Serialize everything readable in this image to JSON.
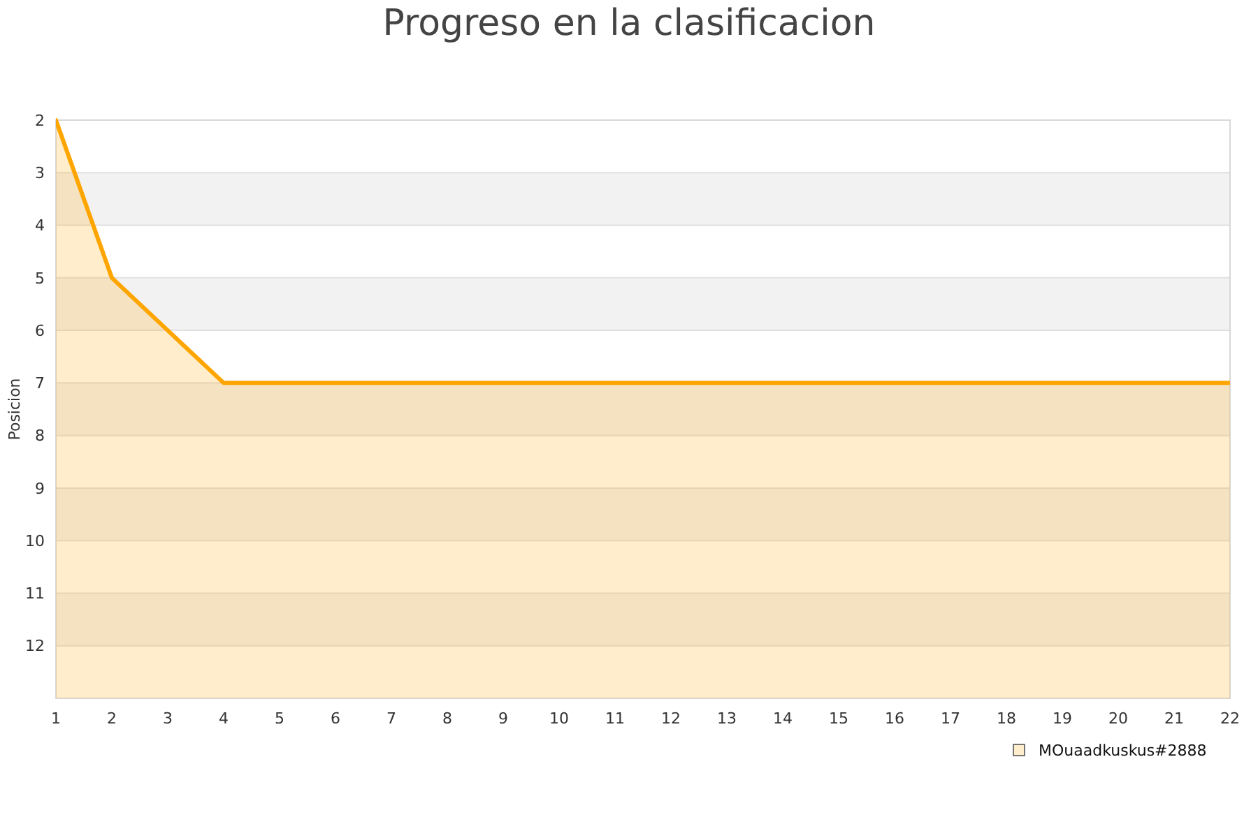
{
  "chart_data": {
    "type": "area",
    "title": "Progreso en la clasificacion",
    "ylabel": "Posicion",
    "x": [
      1,
      2,
      3,
      4,
      5,
      6,
      7,
      8,
      9,
      10,
      11,
      12,
      13,
      14,
      15,
      16,
      17,
      18,
      19,
      20,
      21,
      22
    ],
    "series": [
      {
        "name": "MOuaadkuskus#2888",
        "color": "#ffa500",
        "values": [
          2,
          5,
          6,
          7,
          7,
          7,
          7,
          7,
          7,
          7,
          7,
          7,
          7,
          7,
          7,
          7,
          7,
          7,
          7,
          7,
          7,
          7
        ]
      }
    ],
    "xlim": [
      1,
      22
    ],
    "xticks": [
      1,
      2,
      3,
      4,
      5,
      6,
      7,
      8,
      9,
      10,
      11,
      12,
      13,
      14,
      15,
      16,
      17,
      18,
      19,
      20,
      21,
      22
    ],
    "ylim": [
      13,
      2
    ],
    "yticks": [
      2,
      3,
      4,
      5,
      6,
      7,
      8,
      9,
      10,
      11,
      12,
      {
        "value": 13,
        "label": null
      }
    ],
    "bands": [
      {
        "axis": "y",
        "from": 3,
        "to": 4,
        "color": "#f2f2f2"
      },
      {
        "axis": "y",
        "from": 5,
        "to": 6,
        "color": "#f2f2f2"
      },
      {
        "axis": "y",
        "from": 7,
        "to": 8,
        "color": "#f2f2f2"
      },
      {
        "axis": "y",
        "from": 9,
        "to": 10,
        "color": "#f2f2f2"
      },
      {
        "axis": "y",
        "from": 11,
        "to": 12,
        "color": "#f2f2f2"
      }
    ],
    "grid": "y",
    "legend": "bottom right",
    "marker": "none",
    "line_style": "solid"
  }
}
